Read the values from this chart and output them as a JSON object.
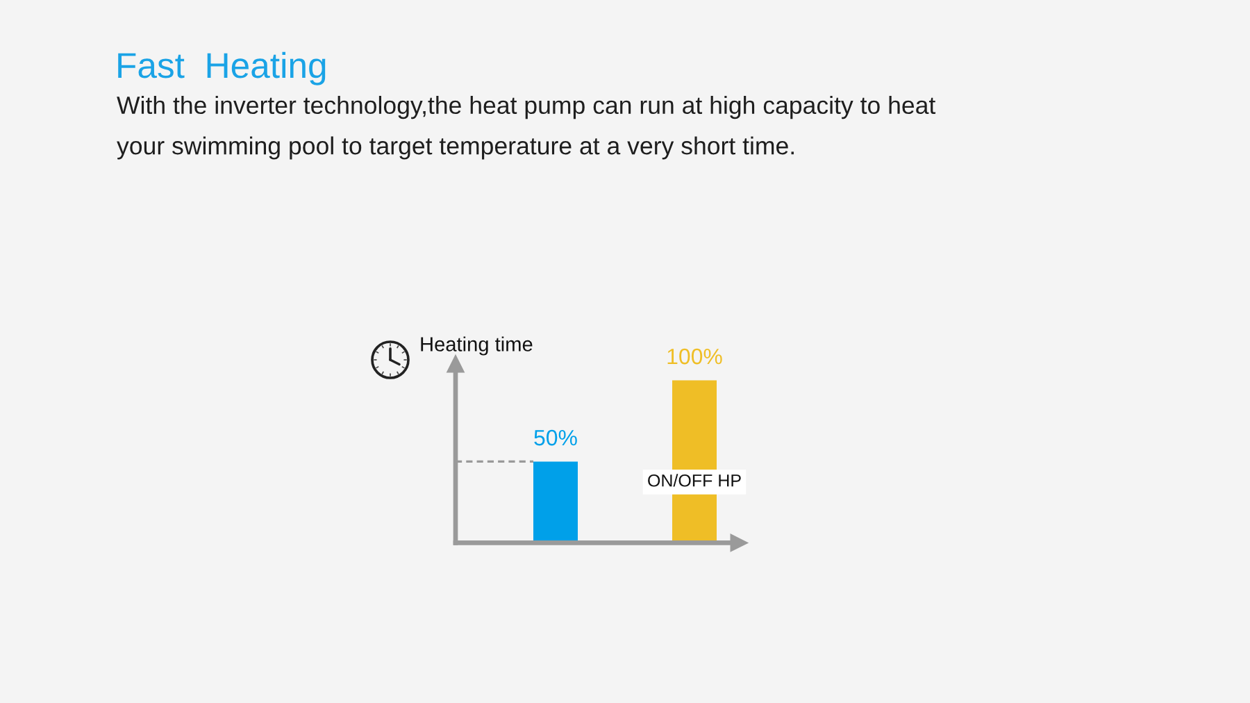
{
  "chart_data": {
    "type": "bar",
    "title": "Fast  Heating",
    "subtitle": "With the inverter technology,the heat pump can run at high capacity to heat\nyour swimming pool to target temperature at a very short time.",
    "ylabel": "Heating time",
    "categories": [
      null,
      "ON/OFF HP"
    ],
    "values": [
      50,
      100
    ],
    "colors": [
      "#00a0e9",
      "#efbe26"
    ],
    "value_labels": [
      "50%",
      "100%"
    ],
    "ylim": [
      0,
      110
    ],
    "tick_labels": "x",
    "ref_lines": [
      {
        "axis": "y",
        "value": 50,
        "color": "#999999",
        "line_style": "dashed"
      }
    ]
  }
}
